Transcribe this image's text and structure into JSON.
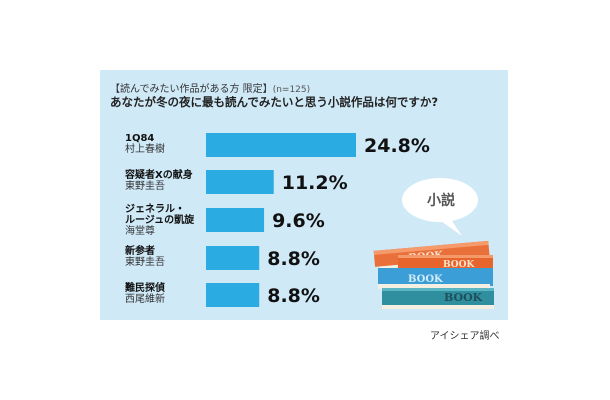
{
  "header": {
    "condition": "【読んでみたい作品がある方 限定】",
    "sample": "(n=125)",
    "question": "あなたが冬の夜に最も読んでみたいと思う小説作品は何ですか?"
  },
  "source": "アイシェア調べ",
  "illustration": {
    "bubble_text": "小説",
    "book_label": "BOOK"
  },
  "colors": {
    "bar": "#2aace2",
    "panel": "#cfe9f7",
    "text": "#222222"
  },
  "chart_data": {
    "type": "bar",
    "orientation": "horizontal",
    "categories": [
      {
        "title": [
          "1Q84"
        ],
        "author": "村上春樹"
      },
      {
        "title": [
          "容疑者Xの献身"
        ],
        "author": "東野圭吾"
      },
      {
        "title": [
          "ジェネラル・",
          "ルージュの凱旋"
        ],
        "author": "海堂尊"
      },
      {
        "title": [
          "新参者"
        ],
        "author": "東野圭吾"
      },
      {
        "title": [
          "難民探偵"
        ],
        "author": "西尾維新"
      }
    ],
    "values": [
      24.8,
      11.2,
      9.6,
      8.8,
      8.8
    ],
    "value_labels": [
      "24.8%",
      "11.2%",
      "9.6%",
      "8.8%",
      "8.8%"
    ],
    "unit": "%"
  }
}
